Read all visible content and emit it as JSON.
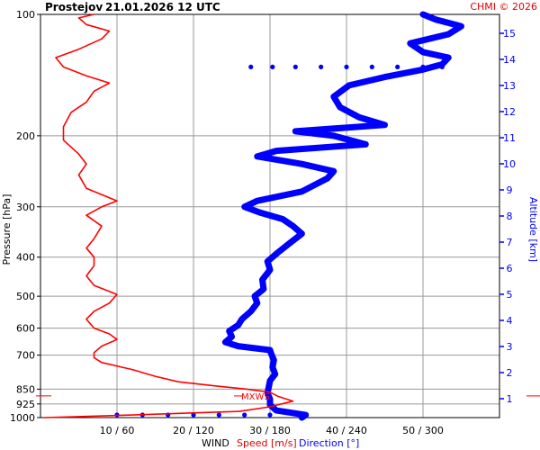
{
  "header": {
    "station": "Prostejov",
    "datetime": "21.01.2026 12 UTC",
    "credit": "CHMI © 2026"
  },
  "axes": {
    "left_label": "Pressure [hPa]",
    "right_label": "Altitude [km]",
    "bottom_prefix": "WIND",
    "bottom_speed": "Speed [m/s]",
    "bottom_dir": "Direction [°]",
    "mxws_label": "MXWS"
  },
  "colors": {
    "speed": "#ff0000",
    "direction": "#0000ff",
    "grid": "#999999",
    "text": "#000000"
  },
  "chart_data": {
    "type": "line",
    "title": "Prostejov   21.01.2026 12 UTC",
    "ylabel": "Pressure [hPa]",
    "ylabel_right": "Altitude [km]",
    "xlabel": "WIND  Speed [m/s]  Direction [°]",
    "y_scale": "log",
    "ylim": [
      1000,
      100
    ],
    "y_ticks": [
      {
        "value": 100,
        "label": "100"
      },
      {
        "value": 200,
        "label": "200"
      },
      {
        "value": 300,
        "label": "300"
      },
      {
        "value": 400,
        "label": "400"
      },
      {
        "value": 500,
        "label": "500"
      },
      {
        "value": 600,
        "label": "600"
      },
      {
        "value": 700,
        "label": "700"
      },
      {
        "value": 850,
        "label": "850"
      },
      {
        "value": 925,
        "label": "925"
      },
      {
        "value": 1000,
        "label": "1000"
      }
    ],
    "alt_ticks": [
      {
        "value": 1,
        "label": "1"
      },
      {
        "value": 2,
        "label": "2"
      },
      {
        "value": 3,
        "label": "3"
      },
      {
        "value": 4,
        "label": "4"
      },
      {
        "value": 5,
        "label": "5"
      },
      {
        "value": 6,
        "label": "6"
      },
      {
        "value": 7,
        "label": "7"
      },
      {
        "value": 8,
        "label": "8"
      },
      {
        "value": 9,
        "label": "9"
      },
      {
        "value": 10,
        "label": "10"
      },
      {
        "value": 11,
        "label": "11"
      },
      {
        "value": 12,
        "label": "12"
      },
      {
        "value": 13,
        "label": "13"
      },
      {
        "value": 14,
        "label": "14"
      },
      {
        "value": 15,
        "label": "15"
      }
    ],
    "x_speed_range": [
      0,
      60
    ],
    "x_dir_range": [
      0,
      360
    ],
    "x_ticks": [
      {
        "speed": 10,
        "dir": 60,
        "label": "10 / 60"
      },
      {
        "speed": 20,
        "dir": 120,
        "label": "20 / 120"
      },
      {
        "speed": 30,
        "dir": 180,
        "label": "30 / 180"
      },
      {
        "speed": 40,
        "dir": 240,
        "label": "40 / 240"
      },
      {
        "speed": 50,
        "dir": 300,
        "label": "50 / 300"
      }
    ],
    "grid": true,
    "mxws_level": 870,
    "series": [
      {
        "name": "Speed [m/s]",
        "unit": "m/s",
        "points": [
          [
            1000,
            0.5
          ],
          [
            985,
            12
          ],
          [
            965,
            26
          ],
          [
            940,
            30
          ],
          [
            910,
            33
          ],
          [
            885,
            31
          ],
          [
            865,
            30
          ],
          [
            850,
            27
          ],
          [
            835,
            23
          ],
          [
            815,
            18
          ],
          [
            790,
            15
          ],
          [
            760,
            12
          ],
          [
            730,
            8
          ],
          [
            710,
            7
          ],
          [
            690,
            7
          ],
          [
            665,
            8
          ],
          [
            640,
            10
          ],
          [
            620,
            9
          ],
          [
            600,
            7
          ],
          [
            570,
            6
          ],
          [
            545,
            7
          ],
          [
            520,
            9
          ],
          [
            495,
            10
          ],
          [
            470,
            7
          ],
          [
            445,
            6
          ],
          [
            420,
            7
          ],
          [
            400,
            7
          ],
          [
            380,
            6
          ],
          [
            360,
            7
          ],
          [
            335,
            8
          ],
          [
            315,
            6
          ],
          [
            300,
            8
          ],
          [
            290,
            10
          ],
          [
            280,
            8
          ],
          [
            270,
            6
          ],
          [
            250,
            5
          ],
          [
            235,
            6
          ],
          [
            222,
            5
          ],
          [
            205,
            3
          ],
          [
            190,
            3
          ],
          [
            175,
            4
          ],
          [
            165,
            6
          ],
          [
            155,
            7
          ],
          [
            148,
            9
          ],
          [
            142,
            6
          ],
          [
            135,
            3
          ],
          [
            128,
            2
          ],
          [
            122,
            5
          ],
          [
            115,
            8
          ],
          [
            110,
            9
          ],
          [
            106,
            6
          ],
          [
            102,
            5
          ],
          [
            100,
            7
          ]
        ]
      },
      {
        "name": "Direction [°]",
        "unit": "deg",
        "points": [
          [
            1000,
            205
          ],
          [
            985,
            208
          ],
          [
            960,
            185
          ],
          [
            930,
            180
          ],
          [
            900,
            180
          ],
          [
            870,
            178
          ],
          [
            840,
            179
          ],
          [
            810,
            180
          ],
          [
            780,
            184
          ],
          [
            750,
            182
          ],
          [
            720,
            183
          ],
          [
            695,
            181
          ],
          [
            680,
            180
          ],
          [
            665,
            155
          ],
          [
            650,
            145
          ],
          [
            630,
            150
          ],
          [
            610,
            148
          ],
          [
            590,
            155
          ],
          [
            570,
            158
          ],
          [
            545,
            165
          ],
          [
            520,
            170
          ],
          [
            500,
            168
          ],
          [
            480,
            175
          ],
          [
            455,
            174
          ],
          [
            430,
            180
          ],
          [
            410,
            178
          ],
          [
            390,
            186
          ],
          [
            370,
            195
          ],
          [
            350,
            205
          ],
          [
            335,
            198
          ],
          [
            322,
            190
          ],
          [
            310,
            172
          ],
          [
            300,
            160
          ],
          [
            290,
            170
          ],
          [
            275,
            205
          ],
          [
            255,
            225
          ],
          [
            245,
            230
          ],
          [
            235,
            205
          ],
          [
            225,
            170
          ],
          [
            218,
            185
          ],
          [
            210,
            255
          ],
          [
            200,
            230
          ],
          [
            195,
            200
          ],
          [
            188,
            270
          ],
          [
            180,
            250
          ],
          [
            170,
            235
          ],
          [
            160,
            230
          ],
          [
            150,
            242
          ],
          [
            143,
            270
          ],
          [
            137,
            300
          ],
          [
            133,
            315
          ],
          [
            128,
            320
          ],
          [
            124,
            300
          ],
          [
            118,
            290
          ],
          [
            112,
            320
          ],
          [
            107,
            330
          ],
          [
            103,
            310
          ],
          [
            100,
            300
          ]
        ]
      }
    ],
    "direction_dots": [
      {
        "pressure": 1000,
        "dirs": [
          60,
          80,
          100,
          120,
          140,
          160,
          180
        ]
      },
      {
        "pressure": 135,
        "dirs": [
          165,
          182,
          200,
          220,
          240,
          260,
          280,
          300,
          315
        ]
      }
    ]
  }
}
